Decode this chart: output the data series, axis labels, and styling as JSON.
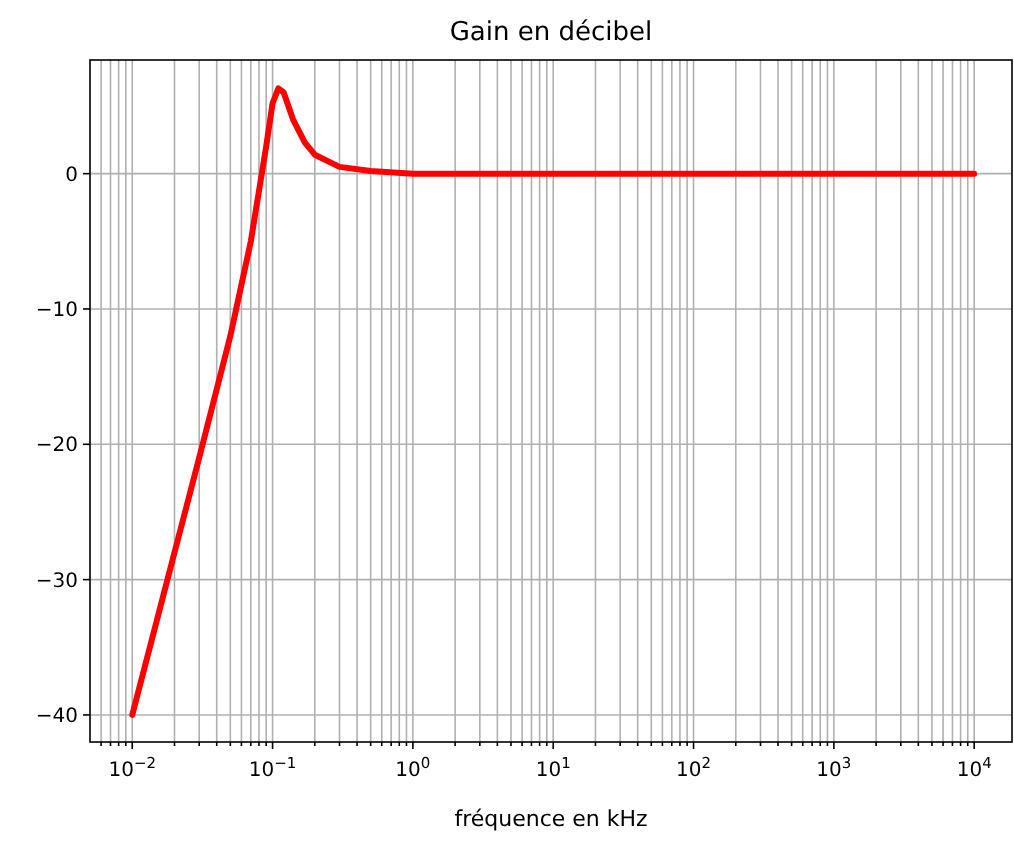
{
  "chart_data": {
    "type": "line",
    "title": "Gain en décibel",
    "xlabel": "fréquence en kHz",
    "log": "x",
    "grid": true,
    "xlim": [
      0.005,
      18600
    ],
    "ylim": [
      -42,
      8.4
    ],
    "xticks": [
      {
        "value": 0.006,
        "label": null
      },
      {
        "value": 0.007,
        "label": null
      },
      {
        "value": 0.008,
        "label": null
      },
      {
        "value": 0.009,
        "label": null
      },
      {
        "value": 0.01,
        "label": "10$^{−2}$"
      },
      {
        "value": 0.02,
        "label": null
      },
      {
        "value": 0.03,
        "label": null
      },
      {
        "value": 0.04,
        "label": null
      },
      {
        "value": 0.05,
        "label": null
      },
      {
        "value": 0.06,
        "label": null
      },
      {
        "value": 0.07,
        "label": null
      },
      {
        "value": 0.08,
        "label": null
      },
      {
        "value": 0.09,
        "label": null
      },
      {
        "value": 0.1,
        "label": "10$^{−1}$"
      },
      {
        "value": 0.2,
        "label": null
      },
      {
        "value": 0.3,
        "label": null
      },
      {
        "value": 0.4,
        "label": null
      },
      {
        "value": 0.5,
        "label": null
      },
      {
        "value": 0.6,
        "label": null
      },
      {
        "value": 0.7,
        "label": null
      },
      {
        "value": 0.8,
        "label": null
      },
      {
        "value": 0.9,
        "label": null
      },
      {
        "value": 1,
        "label": "10$^{0}$"
      },
      {
        "value": 2,
        "label": null
      },
      {
        "value": 3,
        "label": null
      },
      {
        "value": 4,
        "label": null
      },
      {
        "value": 5,
        "label": null
      },
      {
        "value": 6,
        "label": null
      },
      {
        "value": 7,
        "label": null
      },
      {
        "value": 8,
        "label": null
      },
      {
        "value": 9,
        "label": null
      },
      {
        "value": 10,
        "label": "10$^{1}$"
      },
      {
        "value": 20,
        "label": null
      },
      {
        "value": 30,
        "label": null
      },
      {
        "value": 40,
        "label": null
      },
      {
        "value": 50,
        "label": null
      },
      {
        "value": 60,
        "label": null
      },
      {
        "value": 70,
        "label": null
      },
      {
        "value": 80,
        "label": null
      },
      {
        "value": 90,
        "label": null
      },
      {
        "value": 100,
        "label": "10$^{2}$"
      },
      {
        "value": 200,
        "label": null
      },
      {
        "value": 300,
        "label": null
      },
      {
        "value": 400,
        "label": null
      },
      {
        "value": 500,
        "label": null
      },
      {
        "value": 600,
        "label": null
      },
      {
        "value": 700,
        "label": null
      },
      {
        "value": 800,
        "label": null
      },
      {
        "value": 900,
        "label": null
      },
      {
        "value": 1000,
        "label": "10$^{3}$"
      },
      {
        "value": 2000,
        "label": null
      },
      {
        "value": 3000,
        "label": null
      },
      {
        "value": 4000,
        "label": null
      },
      {
        "value": 5000,
        "label": null
      },
      {
        "value": 6000,
        "label": null
      },
      {
        "value": 7000,
        "label": null
      },
      {
        "value": 8000,
        "label": null
      },
      {
        "value": 9000,
        "label": null
      },
      {
        "value": 10000,
        "label": "10$^{4}$"
      }
    ],
    "yticks": [
      {
        "value": 0,
        "label": "0"
      },
      {
        "value": -10,
        "label": "−10"
      },
      {
        "value": -20,
        "label": "−20"
      },
      {
        "value": -30,
        "label": "−30"
      },
      {
        "value": -40,
        "label": "−40"
      }
    ],
    "series": [
      {
        "color": "#ff0000",
        "x": [
          0.01,
          0.02,
          0.03,
          0.05,
          0.07,
          0.09,
          0.1,
          0.11,
          0.12,
          0.14,
          0.17,
          0.2,
          0.3,
          0.5,
          1,
          10,
          100,
          1000,
          10000
        ],
        "values": [
          -40,
          -28,
          -21,
          -12,
          -5,
          2,
          5.2,
          6.3,
          6,
          4,
          2.3,
          1.4,
          0.5,
          0.2,
          0,
          0,
          0,
          0,
          0
        ]
      }
    ]
  }
}
